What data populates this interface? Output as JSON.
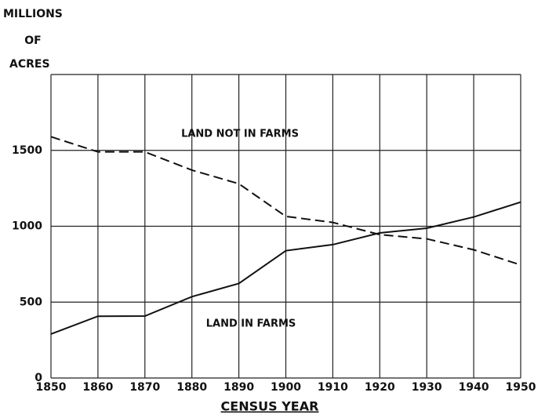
{
  "chart_data": {
    "type": "line",
    "ylabel": [
      "MILLIONS",
      "OF",
      "ACRES"
    ],
    "xlabel": "CENSUS YEAR",
    "annotations": [
      "LAND NOT IN FARMS",
      "LAND IN FARMS"
    ],
    "x": [
      1850,
      1860,
      1870,
      1880,
      1890,
      1900,
      1910,
      1920,
      1930,
      1940,
      1950
    ],
    "series": [
      {
        "name": "LAND IN FARMS",
        "color": "#111111",
        "dash": false,
        "values": [
          290,
          407,
          408,
          536,
          623,
          839,
          879,
          956,
          987,
          1061,
          1159
        ]
      },
      {
        "name": "LAND NOT IN FARMS",
        "color": "#111111",
        "dash": true,
        "values": [
          1590,
          1490,
          1490,
          1370,
          1280,
          1065,
          1025,
          945,
          917,
          845,
          745
        ]
      }
    ],
    "xlim": [
      1850,
      1950
    ],
    "xticks": [
      1850,
      1860,
      1870,
      1880,
      1890,
      1900,
      1910,
      1920,
      1930,
      1940,
      1950
    ],
    "ylim": [
      0,
      2000
    ],
    "yticks": [
      0,
      500,
      1000,
      1500,
      2000
    ],
    "grid": true
  }
}
